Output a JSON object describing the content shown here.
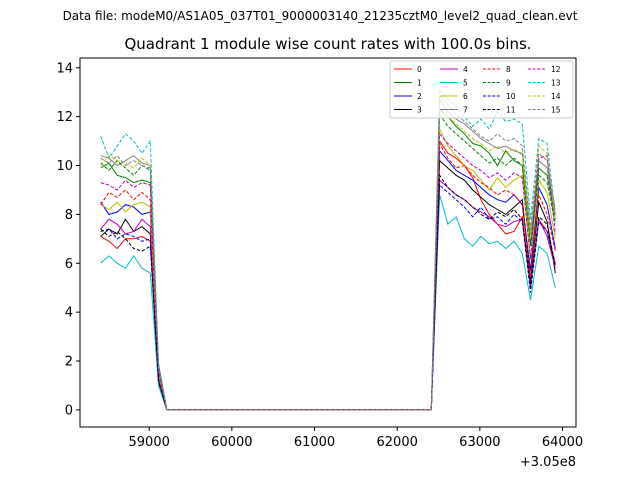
{
  "chart_data": {
    "type": "line",
    "suptitle": "Data file: modeM0/AS1A05_037T01_9000003140_21235cztM0_level2_quad_clean.evt",
    "title": "Quadrant 1 module wise count rates with 100.0s bins.",
    "xlabel": "",
    "ylabel": "",
    "x_offset_label": "+3.05e8",
    "xlim": [
      58163,
      64163
    ],
    "ylim": [
      -0.7,
      14.4
    ],
    "xticks": [
      59000,
      60000,
      61000,
      62000,
      63000,
      64000
    ],
    "xtick_labels": [
      "59000",
      "60000",
      "61000",
      "62000",
      "63000",
      "64000"
    ],
    "yticks": [
      0,
      2,
      4,
      6,
      8,
      10,
      12,
      14
    ],
    "ytick_labels": [
      "0",
      "2",
      "4",
      "6",
      "8",
      "10",
      "12",
      "14"
    ],
    "legend_position": "top-right",
    "x": [
      58413,
      58513,
      58613,
      58713,
      58813,
      58913,
      59013,
      59113,
      59213,
      62413,
      62513,
      62613,
      62713,
      62813,
      62913,
      63013,
      63113,
      63213,
      63313,
      63413,
      63513,
      63613,
      63713,
      63813,
      63913
    ],
    "series": [
      {
        "name": "0",
        "color": "#ff0000",
        "dash": "solid",
        "values": [
          7.1,
          6.9,
          6.6,
          7.0,
          7.0,
          7.1,
          6.9,
          1.1,
          0,
          0,
          11.0,
          10.5,
          10.3,
          10.0,
          9.5,
          8.6,
          8.0,
          7.6,
          7.2,
          7.3,
          7.9,
          5.1,
          7.8,
          7.3,
          6.0
        ]
      },
      {
        "name": "1",
        "color": "#008000",
        "dash": "solid",
        "values": [
          9.9,
          10.1,
          9.6,
          9.5,
          9.3,
          9.4,
          9.3,
          1.7,
          0,
          0,
          12.3,
          12.0,
          11.6,
          11.3,
          10.9,
          10.8,
          10.5,
          10.0,
          10.6,
          10.2,
          10.0,
          6.8,
          9.9,
          9.6,
          7.8
        ]
      },
      {
        "name": "2",
        "color": "#0000ff",
        "dash": "solid",
        "values": [
          8.5,
          8.0,
          8.1,
          8.4,
          8.3,
          8.0,
          8.1,
          1.4,
          0,
          0,
          10.6,
          10.2,
          9.8,
          9.6,
          9.4,
          9.1,
          8.8,
          8.6,
          8.5,
          8.8,
          8.4,
          5.7,
          9.1,
          8.4,
          6.6
        ]
      },
      {
        "name": "3",
        "color": "#000000",
        "dash": "solid",
        "values": [
          7.1,
          7.4,
          7.2,
          7.8,
          7.3,
          7.5,
          7.2,
          1.3,
          0,
          0,
          10.2,
          9.9,
          9.6,
          9.4,
          9.0,
          8.7,
          8.4,
          8.2,
          8.0,
          8.3,
          8.6,
          5.3,
          8.5,
          7.7,
          5.6
        ]
      },
      {
        "name": "4",
        "color": "#bf00bf",
        "dash": "solid",
        "values": [
          7.4,
          7.8,
          7.6,
          7.2,
          7.3,
          7.8,
          7.5,
          1.2,
          0,
          0,
          9.4,
          9.1,
          8.8,
          8.6,
          8.3,
          8.1,
          7.9,
          7.6,
          7.5,
          7.7,
          7.8,
          5.0,
          7.8,
          7.1,
          5.8
        ]
      },
      {
        "name": "5",
        "color": "#00bfbf",
        "dash": "solid",
        "values": [
          6.0,
          6.3,
          6.0,
          5.8,
          6.3,
          5.8,
          5.6,
          1.0,
          0,
          0,
          8.8,
          7.6,
          7.9,
          7.0,
          6.7,
          7.1,
          6.8,
          6.9,
          6.6,
          6.9,
          6.4,
          4.5,
          6.7,
          6.4,
          5.0
        ]
      },
      {
        "name": "6",
        "color": "#bfbf00",
        "dash": "solid",
        "values": [
          8.4,
          8.2,
          8.5,
          8.1,
          8.4,
          8.5,
          8.3,
          1.4,
          0,
          0,
          11.5,
          10.8,
          10.4,
          10.0,
          9.8,
          9.4,
          9.0,
          9.5,
          9.1,
          9.4,
          9.6,
          6.1,
          9.4,
          8.9,
          7.0
        ]
      },
      {
        "name": "7",
        "color": "#808080",
        "dash": "solid",
        "values": [
          10.4,
          10.3,
          10.0,
          10.2,
          10.4,
          10.1,
          10.0,
          1.9,
          0,
          0,
          12.7,
          12.2,
          11.9,
          11.7,
          11.4,
          11.1,
          10.9,
          10.7,
          10.8,
          10.6,
          10.5,
          7.2,
          10.2,
          9.9,
          8.0
        ]
      },
      {
        "name": "8",
        "color": "#ff0000",
        "dash": "dashed",
        "values": [
          8.4,
          8.9,
          8.7,
          9.0,
          8.6,
          8.9,
          8.6,
          1.5,
          0,
          0,
          10.9,
          10.3,
          9.9,
          10.0,
          9.6,
          9.3,
          9.1,
          8.8,
          9.0,
          8.8,
          8.4,
          5.4,
          8.8,
          8.0,
          6.5
        ]
      },
      {
        "name": "9",
        "color": "#008000",
        "dash": "dashed",
        "values": [
          10.1,
          9.8,
          10.2,
          9.9,
          9.6,
          10.0,
          9.8,
          1.8,
          0,
          0,
          12.1,
          11.6,
          11.3,
          11.0,
          10.7,
          10.4,
          10.1,
          10.3,
          10.0,
          10.3,
          10.0,
          6.7,
          9.6,
          9.3,
          7.6
        ]
      },
      {
        "name": "10",
        "color": "#0000ff",
        "dash": "dashed",
        "values": [
          7.3,
          7.4,
          7.0,
          7.2,
          7.1,
          6.9,
          7.0,
          1.2,
          0,
          0,
          9.2,
          8.9,
          8.6,
          8.3,
          7.9,
          8.3,
          7.8,
          7.9,
          7.6,
          8.0,
          7.7,
          4.8,
          7.7,
          7.3,
          5.9
        ]
      },
      {
        "name": "11",
        "color": "#000000",
        "dash": "dashed",
        "values": [
          7.4,
          7.1,
          7.3,
          7.0,
          6.6,
          6.5,
          6.7,
          1.2,
          0,
          0,
          9.6,
          9.1,
          8.8,
          8.6,
          8.3,
          8.0,
          7.8,
          8.1,
          7.9,
          8.2,
          7.8,
          5.0,
          7.9,
          7.6,
          5.9
        ]
      },
      {
        "name": "12",
        "color": "#bf00bf",
        "dash": "dashed",
        "values": [
          9.3,
          9.2,
          9.0,
          9.4,
          9.1,
          9.3,
          9.2,
          1.6,
          0,
          0,
          11.3,
          10.9,
          10.6,
          10.3,
          10.0,
          9.8,
          9.5,
          9.7,
          9.4,
          9.7,
          9.5,
          6.2,
          10.3,
          10.4,
          7.2
        ]
      },
      {
        "name": "13",
        "color": "#00bfbf",
        "dash": "dashed",
        "values": [
          11.2,
          10.3,
          10.8,
          11.3,
          11.0,
          10.5,
          11.0,
          1.9,
          0,
          0,
          13.1,
          12.7,
          12.4,
          12.0,
          11.6,
          11.9,
          11.5,
          12.2,
          11.8,
          11.9,
          11.7,
          7.8,
          11.1,
          10.9,
          8.0
        ]
      },
      {
        "name": "14",
        "color": "#bfbf00",
        "dash": "dashed",
        "values": [
          10.0,
          10.4,
          10.2,
          10.1,
          9.9,
          10.3,
          10.0,
          1.8,
          0,
          0,
          12.4,
          12.0,
          11.7,
          11.4,
          11.1,
          10.9,
          10.6,
          10.8,
          10.5,
          10.7,
          10.4,
          7.0,
          10.8,
          10.5,
          7.8
        ]
      },
      {
        "name": "15",
        "color": "#808080",
        "dash": "dashed",
        "values": [
          10.3,
          10.1,
          10.4,
          10.0,
          10.2,
          10.0,
          9.9,
          1.8,
          0,
          0,
          12.9,
          12.5,
          12.1,
          11.8,
          11.5,
          11.2,
          11.0,
          11.3,
          11.0,
          11.1,
          10.8,
          7.4,
          10.5,
          10.2,
          8.2
        ]
      }
    ]
  }
}
